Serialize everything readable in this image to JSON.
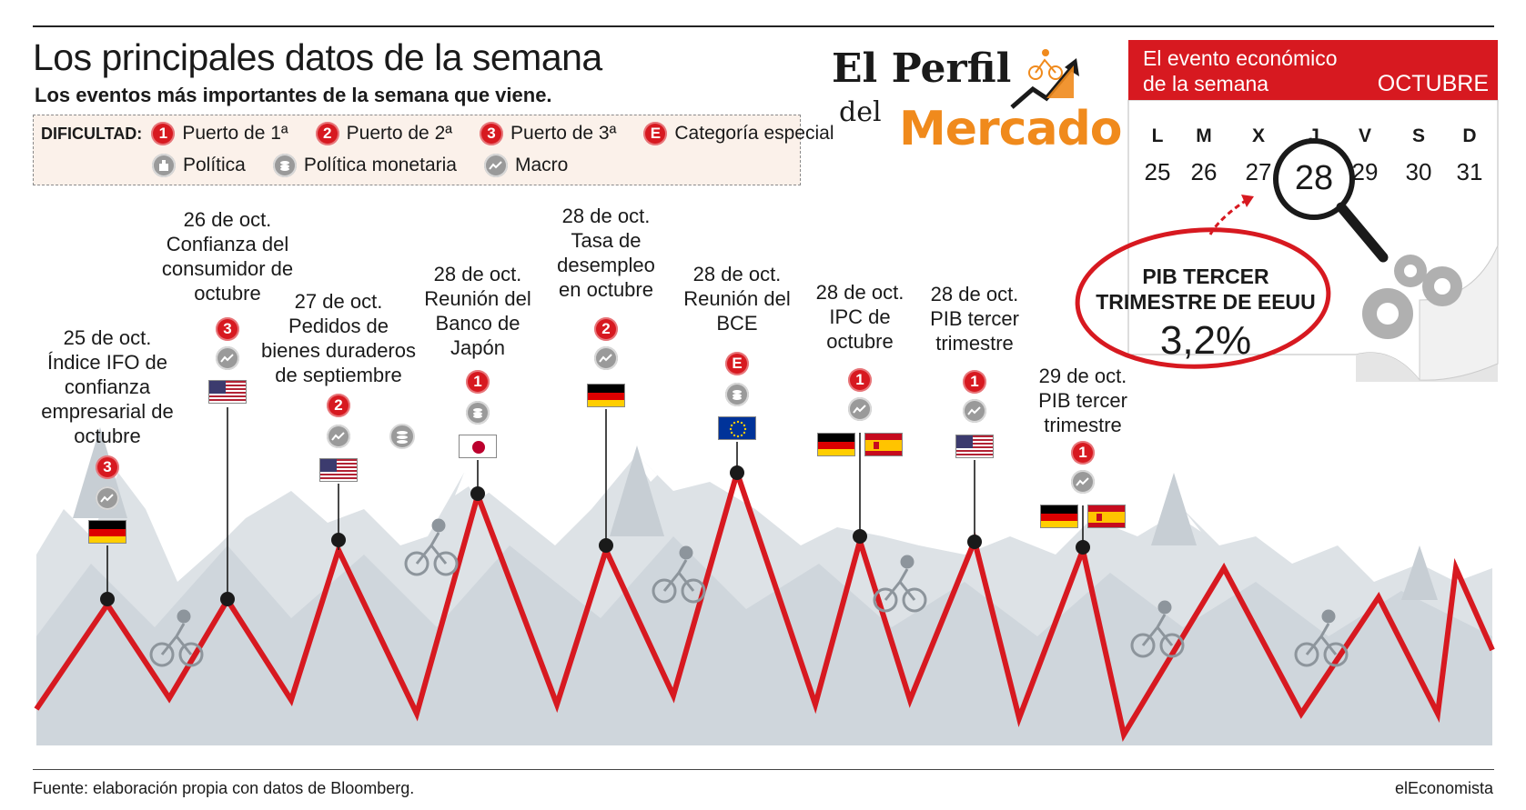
{
  "header": {
    "title": "Los principales datos de la semana",
    "subtitle": "Los eventos más importantes de la semana que viene."
  },
  "legend": {
    "label": "DIFICULTAD:",
    "items": [
      {
        "badge": "1",
        "text": "Puerto de 1ª",
        "icon": "badge-1-icon"
      },
      {
        "badge": "2",
        "text": "Puerto de 2ª",
        "icon": "badge-2-icon"
      },
      {
        "badge": "3",
        "text": "Puerto de 3ª",
        "icon": "badge-3-icon"
      },
      {
        "badge": "E",
        "text": "Categoría especial",
        "icon": "badge-e-icon"
      },
      {
        "text": "Política",
        "icon": "politics-icon"
      },
      {
        "text": "Política monetaria",
        "icon": "monetary-policy-icon"
      },
      {
        "text": "Macro",
        "icon": "macro-icon"
      }
    ]
  },
  "events": [
    {
      "lines": [
        "25 de oct.",
        "Índice IFO de",
        "confianza",
        "empresarial de",
        "octubre"
      ],
      "difficulty": "3",
      "category": "macro",
      "flags": [
        "germany"
      ]
    },
    {
      "lines": [
        "26 de oct.",
        "Confianza del",
        "consumidor de",
        "octubre"
      ],
      "difficulty": "3",
      "category": "macro",
      "flags": [
        "usa"
      ]
    },
    {
      "lines": [
        "27 de oct.",
        "Pedidos de",
        "bienes duraderos",
        "de septiembre"
      ],
      "difficulty": "2",
      "category": "macro",
      "flags": [
        "usa"
      ]
    },
    {
      "lines": [
        "28 de oct.",
        "Reunión del",
        "Banco de",
        "Japón"
      ],
      "difficulty": "1",
      "category": "monetary",
      "flags": [
        "japan"
      ]
    },
    {
      "lines": [
        "28 de oct.",
        "Tasa de",
        "desempleo",
        "en octubre"
      ],
      "difficulty": "2",
      "category": "macro",
      "flags": [
        "germany"
      ]
    },
    {
      "lines": [
        "28 de oct.",
        "Reunión del",
        "BCE"
      ],
      "difficulty": "E",
      "category": "monetary",
      "flags": [
        "eu"
      ]
    },
    {
      "lines": [
        "28 de oct.",
        "IPC de",
        "octubre"
      ],
      "difficulty": "1",
      "category": "macro",
      "flags": [
        "germany",
        "spain"
      ]
    },
    {
      "lines": [
        "28 de oct.",
        "PIB tercer",
        "trimestre"
      ],
      "difficulty": "1",
      "category": "macro",
      "flags": [
        "usa"
      ]
    },
    {
      "lines": [
        "29 de oct.",
        "PIB tercer",
        "trimestre"
      ],
      "difficulty": "1",
      "category": "macro",
      "flags": [
        "germany",
        "spain"
      ]
    }
  ],
  "logo": {
    "el_perfil": "El Perfil",
    "del": "del",
    "mercado": "Mercado"
  },
  "calendar": {
    "event_label_1": "El evento económico",
    "event_label_2": "de la semana",
    "month": "OCTUBRE",
    "days": [
      "L",
      "M",
      "X",
      "J",
      "V",
      "S",
      "D"
    ],
    "dates": [
      "25",
      "26",
      "27",
      "28",
      "29",
      "30",
      "31"
    ],
    "highlight": "28",
    "highlight_title_1": "PIB TERCER",
    "highlight_title_2": "TRIMESTRE DE EEUU",
    "highlight_value": "3,2%"
  },
  "colors": {
    "accent_red": "#d71920",
    "mercado_orange": "#f08a1c",
    "mountain_grey": "#d5dbe0"
  },
  "footer": {
    "source": "Fuente: elaboración propia con datos de Bloomberg.",
    "brand": "elEconomista"
  }
}
